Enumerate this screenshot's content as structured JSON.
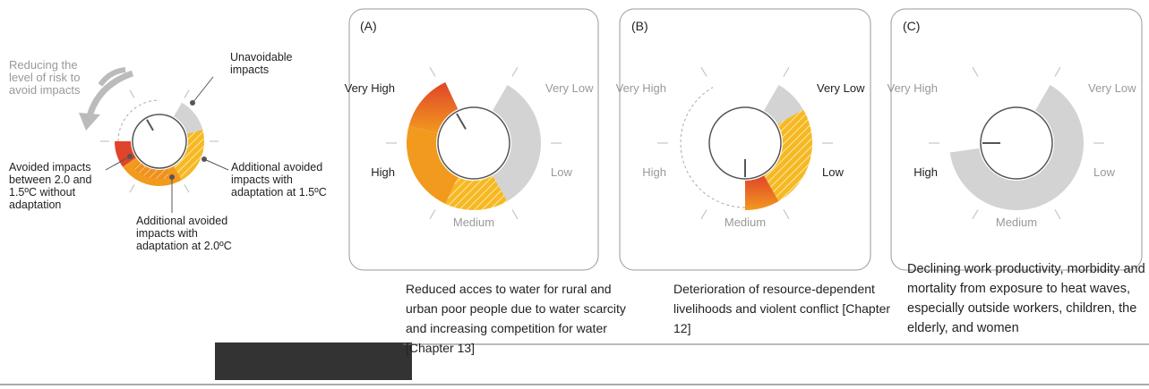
{
  "left": {
    "arrow_label": "Reducing the level of risk to avoid impacts",
    "unavoidable": "Unavoidable impacts",
    "avoided_without": "Avoided impacts between 2.0 and 1.5ºC without adaptation",
    "adapt_2_0": "Additional avoided impacts with adaptation at 2.0ºC",
    "adapt_1_5": "Additional avoided impacts with adaptation at 1.5ºC"
  },
  "panels": [
    {
      "label": "(A)",
      "very_high": "Very High",
      "very_low": "Very Low",
      "high": "High",
      "low": "Low",
      "medium": "Medium",
      "caption": "Reduced acces to water for rural and urban poor people due to water scarcity and increasing competition for water [Chapter 13]"
    },
    {
      "label": "(B)",
      "very_high": "Very High",
      "very_low": "Very Low",
      "high": "High",
      "low": "Low",
      "medium": "Medium",
      "caption": "Deterioration of resource-dependent livelihoods and violent conflict [Chapter 12]"
    },
    {
      "label": "(C)",
      "very_high": "Very High",
      "very_low": "Very Low",
      "high": "High",
      "low": "Low",
      "medium": "Medium",
      "caption": "Declining work productivity, morbidity and mortality from exposure to heat waves, especially outside workers, children, the elderly, and women"
    }
  ]
}
